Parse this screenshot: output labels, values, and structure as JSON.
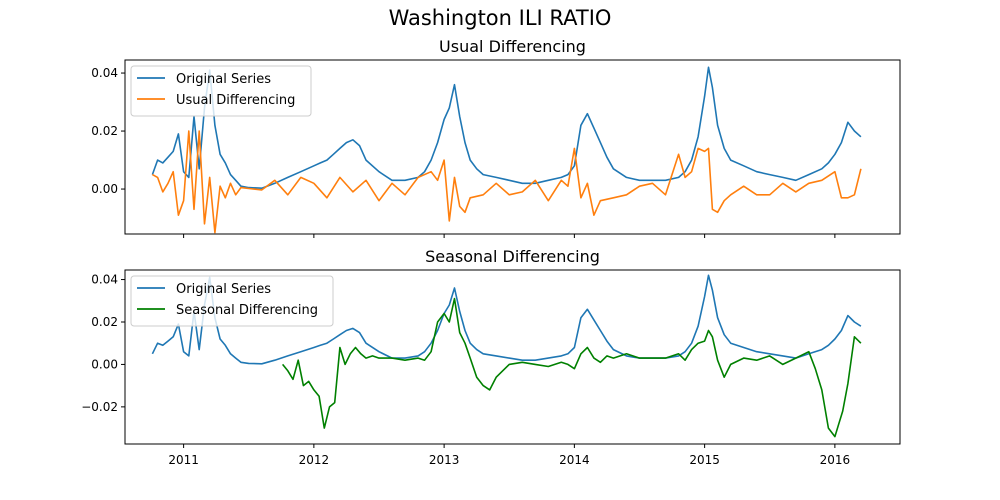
{
  "figure_title": "Washington ILI RATIO",
  "colors": {
    "original": "#1f77b4",
    "usual": "#ff7f0e",
    "seasonal": "#008000"
  },
  "chart_data": [
    {
      "type": "line",
      "title": "Usual Differencing",
      "xlabel": "",
      "ylabel": "",
      "xlim": [
        2010.55,
        2016.5
      ],
      "ylim": [
        -0.0155,
        0.0445
      ],
      "yticks": [
        0.0,
        0.02,
        0.04
      ],
      "ytick_labels": [
        "0.00",
        "0.02",
        "0.04"
      ],
      "xticks": [
        2011,
        2012,
        2013,
        2014,
        2015,
        2016
      ],
      "xtick_labels": [
        "",
        "",
        "",
        "",
        "",
        ""
      ],
      "legend_position": "upper-left",
      "grid": false,
      "series": [
        {
          "name": "Original Series",
          "color_key": "original",
          "x": [
            2010.76,
            2010.8,
            2010.84,
            2010.88,
            2010.92,
            2010.96,
            2011.0,
            2011.04,
            2011.08,
            2011.12,
            2011.16,
            2011.2,
            2011.24,
            2011.28,
            2011.32,
            2011.36,
            2011.4,
            2011.44,
            2011.5,
            2011.6,
            2011.7,
            2011.8,
            2011.9,
            2012.0,
            2012.05,
            2012.1,
            2012.15,
            2012.2,
            2012.25,
            2012.3,
            2012.35,
            2012.4,
            2012.5,
            2012.6,
            2012.7,
            2012.8,
            2012.85,
            2012.9,
            2012.95,
            2013.0,
            2013.04,
            2013.08,
            2013.12,
            2013.16,
            2013.2,
            2013.25,
            2013.3,
            2013.4,
            2013.5,
            2013.6,
            2013.7,
            2013.8,
            2013.9,
            2013.95,
            2014.0,
            2014.05,
            2014.1,
            2014.15,
            2014.2,
            2014.25,
            2014.3,
            2014.4,
            2014.5,
            2014.6,
            2014.7,
            2014.8,
            2014.85,
            2014.9,
            2014.95,
            2015.0,
            2015.03,
            2015.06,
            2015.1,
            2015.15,
            2015.2,
            2015.3,
            2015.4,
            2015.5,
            2015.6,
            2015.7,
            2015.8,
            2015.9,
            2015.95,
            2016.0,
            2016.05,
            2016.1,
            2016.15,
            2016.2
          ],
          "y": [
            0.005,
            0.01,
            0.009,
            0.011,
            0.013,
            0.019,
            0.006,
            0.004,
            0.025,
            0.007,
            0.028,
            0.041,
            0.022,
            0.012,
            0.009,
            0.005,
            0.003,
            0.001,
            0.0005,
            0.0003,
            0.002,
            0.004,
            0.006,
            0.008,
            0.009,
            0.01,
            0.012,
            0.014,
            0.016,
            0.017,
            0.015,
            0.01,
            0.006,
            0.003,
            0.003,
            0.004,
            0.006,
            0.01,
            0.016,
            0.024,
            0.028,
            0.036,
            0.025,
            0.016,
            0.01,
            0.007,
            0.005,
            0.004,
            0.003,
            0.002,
            0.002,
            0.003,
            0.004,
            0.005,
            0.008,
            0.022,
            0.026,
            0.021,
            0.016,
            0.011,
            0.007,
            0.004,
            0.003,
            0.003,
            0.003,
            0.004,
            0.006,
            0.01,
            0.018,
            0.032,
            0.042,
            0.035,
            0.022,
            0.014,
            0.01,
            0.008,
            0.006,
            0.005,
            0.004,
            0.003,
            0.005,
            0.007,
            0.009,
            0.012,
            0.016,
            0.023,
            0.02,
            0.018
          ]
        },
        {
          "name": "Usual Differencing",
          "color_key": "usual",
          "x": [
            2010.76,
            2010.8,
            2010.84,
            2010.88,
            2010.92,
            2010.96,
            2011.0,
            2011.04,
            2011.08,
            2011.12,
            2011.16,
            2011.2,
            2011.24,
            2011.28,
            2011.32,
            2011.36,
            2011.4,
            2011.44,
            2011.5,
            2011.6,
            2011.7,
            2011.8,
            2011.9,
            2012.0,
            2012.1,
            2012.2,
            2012.3,
            2012.4,
            2012.5,
            2012.6,
            2012.7,
            2012.8,
            2012.9,
            2012.95,
            2013.0,
            2013.04,
            2013.08,
            2013.12,
            2013.16,
            2013.2,
            2013.3,
            2013.4,
            2013.5,
            2013.6,
            2013.7,
            2013.8,
            2013.9,
            2013.95,
            2014.0,
            2014.05,
            2014.1,
            2014.15,
            2014.2,
            2014.3,
            2014.4,
            2014.5,
            2014.6,
            2014.7,
            2014.8,
            2014.85,
            2014.9,
            2014.95,
            2015.0,
            2015.03,
            2015.06,
            2015.1,
            2015.15,
            2015.2,
            2015.3,
            2015.4,
            2015.5,
            2015.6,
            2015.7,
            2015.8,
            2015.9,
            2016.0,
            2016.05,
            2016.1,
            2016.15,
            2016.2
          ],
          "y": [
            0.005,
            0.004,
            -0.001,
            0.002,
            0.006,
            -0.009,
            -0.004,
            0.02,
            -0.007,
            0.02,
            -0.012,
            0.004,
            -0.015,
            0.001,
            -0.003,
            0.002,
            -0.002,
            0.0005,
            0.0002,
            -0.0003,
            0.003,
            -0.002,
            0.004,
            0.002,
            -0.003,
            0.004,
            -0.001,
            0.003,
            -0.004,
            0.002,
            -0.002,
            0.004,
            0.006,
            0.003,
            0.01,
            -0.011,
            0.004,
            -0.006,
            -0.008,
            -0.003,
            -0.002,
            0.002,
            -0.002,
            -0.001,
            0.003,
            -0.004,
            0.003,
            0.001,
            0.014,
            -0.003,
            0.002,
            -0.009,
            -0.004,
            -0.003,
            -0.002,
            0.001,
            0.002,
            -0.002,
            0.012,
            0.004,
            0.006,
            0.014,
            0.013,
            0.014,
            -0.007,
            -0.008,
            -0.004,
            -0.002,
            0.001,
            -0.002,
            -0.002,
            0.002,
            -0.001,
            0.002,
            0.003,
            0.006,
            -0.003,
            -0.003,
            -0.002,
            0.007
          ]
        }
      ]
    },
    {
      "type": "line",
      "title": "Seasonal Differencing",
      "xlabel": "",
      "ylabel": "",
      "xlim": [
        2010.55,
        2016.5
      ],
      "ylim": [
        -0.0375,
        0.0445
      ],
      "yticks": [
        -0.02,
        0.0,
        0.02,
        0.04
      ],
      "ytick_labels": [
        "−0.02",
        "0.00",
        "0.02",
        "0.04"
      ],
      "xticks": [
        2011,
        2012,
        2013,
        2014,
        2015,
        2016
      ],
      "xtick_labels": [
        "2011",
        "2012",
        "2013",
        "2014",
        "2015",
        "2016"
      ],
      "legend_position": "upper-left",
      "grid": false,
      "series": [
        {
          "name": "Original Series",
          "color_key": "original",
          "x": [
            2010.76,
            2010.8,
            2010.84,
            2010.88,
            2010.92,
            2010.96,
            2011.0,
            2011.04,
            2011.08,
            2011.12,
            2011.16,
            2011.2,
            2011.24,
            2011.28,
            2011.32,
            2011.36,
            2011.4,
            2011.44,
            2011.5,
            2011.6,
            2011.7,
            2011.8,
            2011.9,
            2012.0,
            2012.05,
            2012.1,
            2012.15,
            2012.2,
            2012.25,
            2012.3,
            2012.35,
            2012.4,
            2012.5,
            2012.6,
            2012.7,
            2012.8,
            2012.85,
            2012.9,
            2012.95,
            2013.0,
            2013.04,
            2013.08,
            2013.12,
            2013.16,
            2013.2,
            2013.25,
            2013.3,
            2013.4,
            2013.5,
            2013.6,
            2013.7,
            2013.8,
            2013.9,
            2013.95,
            2014.0,
            2014.05,
            2014.1,
            2014.15,
            2014.2,
            2014.25,
            2014.3,
            2014.4,
            2014.5,
            2014.6,
            2014.7,
            2014.8,
            2014.85,
            2014.9,
            2014.95,
            2015.0,
            2015.03,
            2015.06,
            2015.1,
            2015.15,
            2015.2,
            2015.3,
            2015.4,
            2015.5,
            2015.6,
            2015.7,
            2015.8,
            2015.9,
            2015.95,
            2016.0,
            2016.05,
            2016.1,
            2016.15,
            2016.2
          ],
          "y": [
            0.005,
            0.01,
            0.009,
            0.011,
            0.013,
            0.019,
            0.006,
            0.004,
            0.025,
            0.007,
            0.028,
            0.041,
            0.022,
            0.012,
            0.009,
            0.005,
            0.003,
            0.001,
            0.0005,
            0.0003,
            0.002,
            0.004,
            0.006,
            0.008,
            0.009,
            0.01,
            0.012,
            0.014,
            0.016,
            0.017,
            0.015,
            0.01,
            0.006,
            0.003,
            0.003,
            0.004,
            0.006,
            0.01,
            0.016,
            0.024,
            0.028,
            0.036,
            0.025,
            0.016,
            0.01,
            0.007,
            0.005,
            0.004,
            0.003,
            0.002,
            0.002,
            0.003,
            0.004,
            0.005,
            0.008,
            0.022,
            0.026,
            0.021,
            0.016,
            0.011,
            0.007,
            0.004,
            0.003,
            0.003,
            0.003,
            0.004,
            0.006,
            0.01,
            0.018,
            0.032,
            0.042,
            0.035,
            0.022,
            0.014,
            0.01,
            0.008,
            0.006,
            0.005,
            0.004,
            0.003,
            0.005,
            0.007,
            0.009,
            0.012,
            0.016,
            0.023,
            0.02,
            0.018
          ]
        },
        {
          "name": "Seasonal Differencing",
          "color_key": "seasonal",
          "x": [
            2011.76,
            2011.8,
            2011.84,
            2011.88,
            2011.92,
            2011.96,
            2012.0,
            2012.04,
            2012.08,
            2012.12,
            2012.16,
            2012.2,
            2012.24,
            2012.28,
            2012.32,
            2012.36,
            2012.4,
            2012.45,
            2012.5,
            2012.6,
            2012.7,
            2012.8,
            2012.85,
            2012.9,
            2012.95,
            2013.0,
            2013.04,
            2013.08,
            2013.12,
            2013.16,
            2013.2,
            2013.25,
            2013.3,
            2013.35,
            2013.4,
            2013.5,
            2013.6,
            2013.7,
            2013.8,
            2013.9,
            2013.95,
            2014.0,
            2014.05,
            2014.1,
            2014.15,
            2014.2,
            2014.25,
            2014.3,
            2014.4,
            2014.5,
            2014.6,
            2014.7,
            2014.8,
            2014.85,
            2014.9,
            2014.95,
            2015.0,
            2015.03,
            2015.06,
            2015.1,
            2015.15,
            2015.2,
            2015.3,
            2015.4,
            2015.5,
            2015.6,
            2015.7,
            2015.8,
            2015.85,
            2015.9,
            2015.95,
            2016.0,
            2016.03,
            2016.06,
            2016.1,
            2016.15,
            2016.2
          ],
          "y": [
            0.0,
            -0.003,
            -0.007,
            0.002,
            -0.01,
            -0.008,
            -0.012,
            -0.015,
            -0.03,
            -0.02,
            -0.018,
            0.008,
            0.0,
            0.005,
            0.008,
            0.005,
            0.003,
            0.004,
            0.003,
            0.003,
            0.002,
            0.003,
            0.002,
            0.006,
            0.02,
            0.024,
            0.02,
            0.031,
            0.015,
            0.01,
            0.003,
            -0.006,
            -0.01,
            -0.012,
            -0.006,
            0.0,
            0.001,
            0.0,
            -0.001,
            0.001,
            0.0,
            -0.002,
            0.005,
            0.008,
            0.003,
            0.001,
            0.004,
            0.003,
            0.005,
            0.003,
            0.003,
            0.003,
            0.005,
            0.002,
            0.007,
            0.01,
            0.011,
            0.016,
            0.013,
            0.002,
            -0.006,
            0.0,
            0.003,
            0.002,
            0.004,
            0.0,
            0.003,
            0.006,
            -0.002,
            -0.012,
            -0.03,
            -0.034,
            -0.028,
            -0.022,
            -0.009,
            0.013,
            0.01
          ]
        }
      ]
    }
  ]
}
